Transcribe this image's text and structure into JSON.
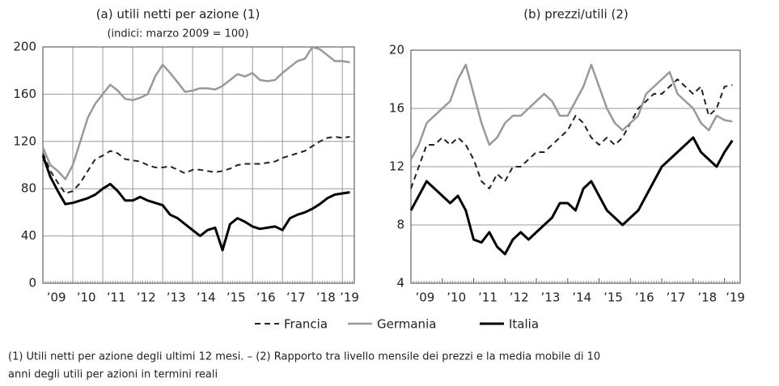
{
  "chart_data": [
    {
      "type": "line",
      "title": "(a) utili netti per azione (1)",
      "subtitle": "(indici: marzo 2009 = 100)",
      "x": [
        2009,
        2009.25,
        2009.5,
        2009.75,
        2010,
        2010.25,
        2010.5,
        2010.75,
        2011,
        2011.25,
        2011.5,
        2011.75,
        2012,
        2012.25,
        2012.5,
        2012.75,
        2013,
        2013.25,
        2013.5,
        2013.75,
        2014,
        2014.25,
        2014.5,
        2014.75,
        2015,
        2015.25,
        2015.5,
        2015.75,
        2016,
        2016.25,
        2016.5,
        2016.75,
        2017,
        2017.25,
        2017.5,
        2017.75,
        2018,
        2018.25,
        2018.5,
        2018.75,
        2019,
        2019.25
      ],
      "series": [
        {
          "name": "Francia",
          "color": "#222222",
          "line_style": "dashed",
          "line_width": 2,
          "values": [
            110,
            95,
            85,
            76,
            78,
            85,
            95,
            105,
            108,
            112,
            110,
            105,
            104,
            103,
            100,
            98,
            98,
            99,
            96,
            93,
            96,
            96,
            95,
            94,
            95,
            97,
            100,
            101,
            101,
            101,
            102,
            103,
            106,
            108,
            110,
            112,
            116,
            120,
            123,
            124,
            123,
            124
          ]
        },
        {
          "name": "Germania",
          "color": "#999999",
          "line_style": "solid",
          "line_width": 2.5,
          "values": [
            115,
            100,
            95,
            88,
            100,
            120,
            140,
            152,
            160,
            168,
            163,
            156,
            155,
            157,
            160,
            175,
            185,
            178,
            170,
            162,
            163,
            165,
            165,
            164,
            167,
            172,
            177,
            175,
            178,
            172,
            171,
            172,
            178,
            183,
            188,
            190,
            200,
            198,
            193,
            188,
            188,
            187
          ]
        },
        {
          "name": "Italia",
          "color": "#000000",
          "line_style": "solid",
          "line_width": 3,
          "values": [
            108,
            90,
            78,
            67,
            68,
            70,
            72,
            75,
            80,
            84,
            78,
            70,
            70,
            73,
            70,
            68,
            66,
            58,
            55,
            50,
            45,
            40,
            45,
            47,
            28,
            50,
            55,
            52,
            48,
            46,
            47,
            48,
            45,
            55,
            58,
            60,
            63,
            67,
            72,
            75,
            76,
            77
          ]
        }
      ],
      "xlim": [
        2009,
        2019.4
      ],
      "xticks": [
        {
          "value": 2009,
          "label": "’09"
        },
        {
          "value": 2010,
          "label": "’10"
        },
        {
          "value": 2011,
          "label": "’11"
        },
        {
          "value": 2012,
          "label": "’12"
        },
        {
          "value": 2013,
          "label": "’13"
        },
        {
          "value": 2014,
          "label": "’14"
        },
        {
          "value": 2015,
          "label": "’15"
        },
        {
          "value": 2016,
          "label": "’16"
        },
        {
          "value": 2017,
          "label": "’17"
        },
        {
          "value": 2018,
          "label": "’18"
        },
        {
          "value": 2019,
          "label": "’19"
        }
      ],
      "ylim": [
        0,
        200
      ],
      "yticks": [
        0,
        40,
        80,
        120,
        160,
        200
      ],
      "grid": true,
      "xgrid": true
    },
    {
      "type": "line",
      "title": "(b) prezzi/utili (2)",
      "x": [
        2009,
        2009.25,
        2009.5,
        2009.75,
        2010,
        2010.25,
        2010.5,
        2010.75,
        2011,
        2011.25,
        2011.5,
        2011.75,
        2012,
        2012.25,
        2012.5,
        2012.75,
        2013,
        2013.25,
        2013.5,
        2013.75,
        2014,
        2014.25,
        2014.5,
        2014.75,
        2015,
        2015.25,
        2015.5,
        2015.75,
        2016,
        2016.25,
        2016.5,
        2016.75,
        2017,
        2017.25,
        2017.5,
        2017.75,
        2018,
        2018.25,
        2018.5,
        2018.75,
        2019,
        2019.25
      ],
      "series": [
        {
          "name": "Francia",
          "color": "#222222",
          "line_style": "dashed",
          "line_width": 2,
          "values": [
            10.5,
            12,
            13.5,
            13.5,
            14,
            13.5,
            14,
            13.5,
            12.5,
            11,
            10.5,
            11.5,
            11,
            12,
            12,
            12.5,
            13,
            13,
            13.5,
            14,
            14.5,
            15.5,
            15,
            14,
            13.5,
            14,
            13.5,
            14,
            15,
            16,
            16.5,
            17,
            17,
            17.5,
            18,
            17.5,
            17,
            17.5,
            15.5,
            16,
            17.5,
            17.6
          ]
        },
        {
          "name": "Germania",
          "color": "#999999",
          "line_style": "solid",
          "line_width": 2.5,
          "values": [
            12.5,
            13.5,
            15,
            15.5,
            16,
            16.5,
            18,
            19,
            17,
            15,
            13.5,
            14,
            15,
            15.5,
            15.5,
            16,
            16.5,
            17,
            16.5,
            15.5,
            15.5,
            16.5,
            17.5,
            19,
            17.5,
            16,
            15,
            14.5,
            15,
            15.5,
            17,
            17.5,
            18,
            18.5,
            17,
            16.5,
            16,
            15,
            14.5,
            15.5,
            15.2,
            15.1
          ]
        },
        {
          "name": "Italia",
          "color": "#000000",
          "line_style": "solid",
          "line_width": 3,
          "values": [
            9,
            10,
            11,
            10.5,
            10,
            9.5,
            10,
            9,
            7,
            6.8,
            7.5,
            6.5,
            6,
            7,
            7.5,
            7,
            7.5,
            8,
            8.5,
            9.5,
            9.5,
            9,
            10.5,
            11,
            10,
            9,
            8.5,
            8,
            8.5,
            9,
            10,
            11,
            12,
            12.5,
            13,
            13.5,
            14,
            13,
            12.5,
            12,
            13,
            13.8
          ]
        }
      ],
      "xlim": [
        2009,
        2019.5
      ],
      "xticks": [
        {
          "value": 2009,
          "label": "’09"
        },
        {
          "value": 2010,
          "label": "’10"
        },
        {
          "value": 2011,
          "label": "’11"
        },
        {
          "value": 2012,
          "label": "’12"
        },
        {
          "value": 2013,
          "label": "’13"
        },
        {
          "value": 2014,
          "label": "’14"
        },
        {
          "value": 2015,
          "label": "’15"
        },
        {
          "value": 2016,
          "label": "’16"
        },
        {
          "value": 2017,
          "label": "’17"
        },
        {
          "value": 2018,
          "label": "’18"
        },
        {
          "value": 2019,
          "label": "’19"
        }
      ],
      "ylim": [
        4,
        20
      ],
      "yticks": [
        4,
        8,
        12,
        16,
        20
      ],
      "grid": true,
      "xgrid": false
    }
  ],
  "notes": [
    "(1) Utili netti per azione degli ultimi 12 mesi. – (2) Rapporto tra livello mensile dei prezzi e la media mobile di 10",
    "anni degli utili per azioni in termini reali"
  ]
}
